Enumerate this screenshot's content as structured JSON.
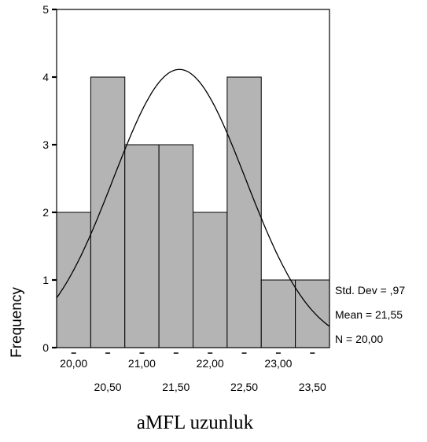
{
  "chart_data": {
    "type": "bar",
    "subtype": "histogram",
    "bins": [
      {
        "start": 19.75,
        "end": 20.25,
        "count": 2
      },
      {
        "start": 20.25,
        "end": 20.75,
        "count": 4
      },
      {
        "start": 20.75,
        "end": 21.25,
        "count": 3
      },
      {
        "start": 21.25,
        "end": 21.75,
        "count": 3
      },
      {
        "start": 21.75,
        "end": 22.25,
        "count": 2
      },
      {
        "start": 22.25,
        "end": 22.75,
        "count": 4
      },
      {
        "start": 22.75,
        "end": 23.25,
        "count": 1
      },
      {
        "start": 23.25,
        "end": 23.75,
        "count": 1
      }
    ],
    "xlim": [
      19.75,
      23.75
    ],
    "ylim": [
      0,
      5
    ],
    "yticks": [
      "0",
      "1",
      "2",
      "3",
      "4",
      "5"
    ],
    "xticks_upper": [
      {
        "value": 20.0,
        "label": "20,00"
      },
      {
        "value": 21.0,
        "label": "21,00"
      },
      {
        "value": 22.0,
        "label": "22,00"
      },
      {
        "value": 23.0,
        "label": "23,00"
      }
    ],
    "xticks_lower": [
      {
        "value": 20.5,
        "label": "20,50"
      },
      {
        "value": 21.5,
        "label": "21,50"
      },
      {
        "value": 22.5,
        "label": "22,50"
      },
      {
        "value": 23.5,
        "label": "23,50"
      }
    ],
    "xlabel": "aMFL uzunluk",
    "ylabel": "Frequency",
    "normal_curve": {
      "mean": 21.55,
      "std": 0.97,
      "n": 20
    },
    "stats": {
      "std_dev": "Std. Dev = ,97",
      "mean": "Mean = 21,55",
      "n": "N = 20,00"
    },
    "bar_color": "#b4b4b4",
    "grid": false
  }
}
